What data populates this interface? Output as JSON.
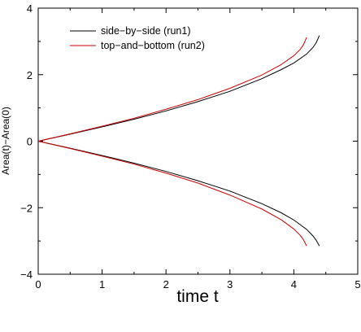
{
  "chart_data": {
    "type": "line",
    "xlabel": "time t",
    "ylabel": "Area(t)−Area(0)",
    "xlim": [
      0,
      5
    ],
    "ylim": [
      -4,
      4
    ],
    "xticks": [
      0,
      1,
      2,
      3,
      4,
      5
    ],
    "yticks": [
      -4,
      -2,
      0,
      2,
      4
    ],
    "grid": false,
    "legend_position": "top-left",
    "series": [
      {
        "name": "side−by−side (run1)",
        "color": "#000000",
        "branches": [
          {
            "x": [
              0,
              0.5,
              1.0,
              1.5,
              2.0,
              2.5,
              3.0,
              3.5,
              3.8,
              4.0,
              4.2,
              4.3,
              4.35,
              4.4
            ],
            "y": [
              0,
              0.21,
              0.43,
              0.66,
              0.91,
              1.19,
              1.5,
              1.88,
              2.15,
              2.35,
              2.62,
              2.82,
              2.96,
              3.18
            ]
          },
          {
            "x": [
              0,
              0.5,
              1.0,
              1.5,
              2.0,
              2.5,
              3.0,
              3.5,
              3.8,
              4.0,
              4.2,
              4.3,
              4.35,
              4.4
            ],
            "y": [
              0,
              -0.21,
              -0.43,
              -0.66,
              -0.91,
              -1.19,
              -1.5,
              -1.88,
              -2.15,
              -2.37,
              -2.65,
              -2.85,
              -2.98,
              -3.15
            ]
          }
        ]
      },
      {
        "name": "top−and−bottom (run2)",
        "color": "#cc0000",
        "branches": [
          {
            "x": [
              0,
              0.5,
              1.0,
              1.5,
              2.0,
              2.5,
              3.0,
              3.5,
              3.8,
              4.0,
              4.1,
              4.15,
              4.2
            ],
            "y": [
              0,
              0.22,
              0.45,
              0.69,
              0.96,
              1.25,
              1.59,
              1.99,
              2.3,
              2.57,
              2.76,
              2.9,
              3.12
            ]
          },
          {
            "x": [
              0,
              0.5,
              1.0,
              1.5,
              2.0,
              2.5,
              3.0,
              3.5,
              3.8,
              4.0,
              4.1,
              4.15,
              4.2
            ],
            "y": [
              0,
              -0.22,
              -0.45,
              -0.69,
              -0.96,
              -1.26,
              -1.62,
              -2.04,
              -2.36,
              -2.64,
              -2.83,
              -2.96,
              -3.15
            ]
          }
        ]
      }
    ]
  }
}
